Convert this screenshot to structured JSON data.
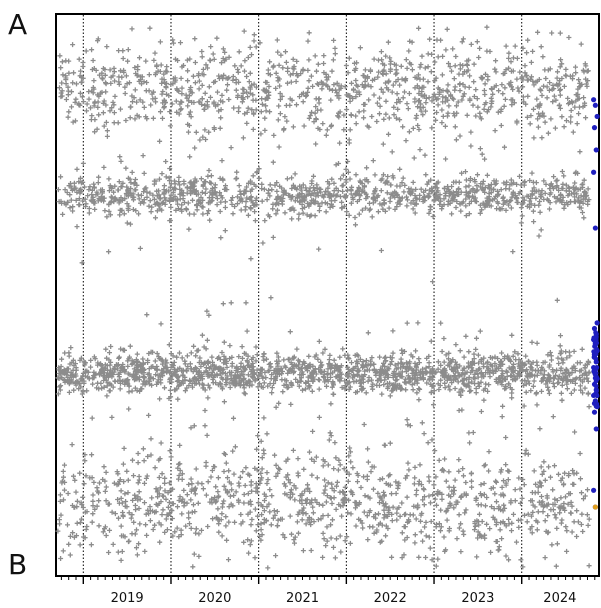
{
  "chart_data": {
    "type": "scatter",
    "title": "",
    "xlabel": "",
    "ylabel": "",
    "corner_labels": {
      "top": "A",
      "bottom": "B"
    },
    "x_axis": {
      "unit": "year",
      "range": [
        2018.7,
        2024.87
      ],
      "tick_labels": [
        "2019",
        "2020",
        "2021",
        "2022",
        "2023",
        "2024"
      ],
      "major_ticks": [
        2019,
        2020,
        2021,
        2022,
        2023,
        2024
      ],
      "minor_tick_interval_months": 1
    },
    "y_axis": {
      "ticks": [],
      "range": [
        0,
        1
      ]
    },
    "grid": {
      "vertical_dotted_at_years": true,
      "horizontal": false
    },
    "series": [
      {
        "marker": "plus",
        "color": "#8c8c8c",
        "description_bands": [
          {
            "y_center": 0.87,
            "y_spread": 0.07,
            "density": "medium"
          },
          {
            "y_center": 0.68,
            "y_spread": 0.03,
            "density": "medium"
          },
          {
            "y_center": 0.36,
            "y_spread": 0.03,
            "density": "high"
          },
          {
            "y_center": 0.13,
            "y_spread": 0.08,
            "density": "medium"
          }
        ]
      },
      {
        "marker": "dot",
        "color": "#1f1fbf",
        "x_range": [
          2024.82,
          2024.86
        ],
        "y_points": [
          0.85,
          0.84,
          0.82,
          0.8,
          0.76,
          0.72,
          0.62,
          0.45,
          0.44,
          0.43,
          0.42,
          0.41,
          0.4,
          0.39,
          0.38,
          0.37,
          0.36,
          0.35,
          0.34,
          0.33,
          0.32,
          0.31,
          0.3,
          0.29,
          0.26,
          0.15,
          0.12
        ]
      },
      {
        "marker": "dot",
        "color": "#e0a020",
        "x_range": [
          2024.84,
          2024.86
        ],
        "y_points": [
          0.12
        ]
      }
    ]
  }
}
